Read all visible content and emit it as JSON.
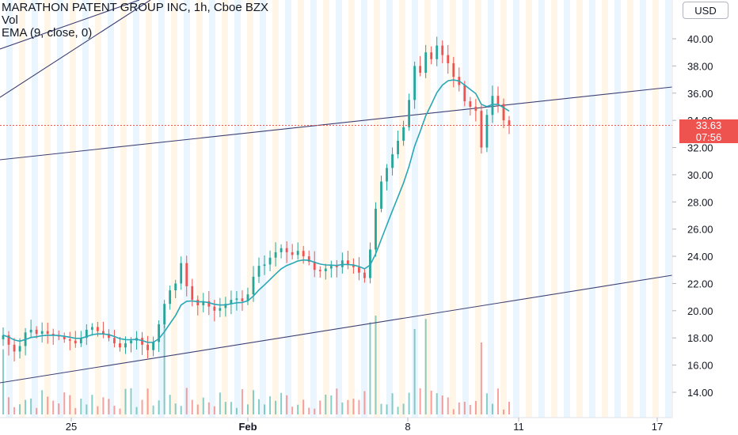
{
  "legend": {
    "symbol_line": "MARATHON PATENT GROUP INC, 1h, Cboe BZX",
    "vol_label": "Vol",
    "ema_label": "EMA (9, close, 0)"
  },
  "currency_button": "USD",
  "price_tag": {
    "price": "33.63",
    "countdown": "07:56"
  },
  "colors": {
    "up": "#26a69a",
    "down": "#ef5350",
    "ema": "#2aa7b5",
    "trendline": "#3c3f73",
    "session_blue": "#e3f2fd",
    "session_orange": "#fff3e0",
    "price_line": "#ef5350"
  },
  "chart_data": {
    "type": "candlestick",
    "symbol": "MARATHON PATENT GROUP INC",
    "interval": "1h",
    "exchange": "Cboe BZX",
    "currency": "USD",
    "y_axis": {
      "ticks": [
        "14.00",
        "16.00",
        "18.00",
        "20.00",
        "22.00",
        "24.00",
        "26.00",
        "28.00",
        "30.00",
        "32.00",
        "34.00",
        "36.00",
        "38.00",
        "40.00"
      ],
      "range": [
        12.5,
        41.5
      ]
    },
    "x_axis": {
      "ticks": [
        {
          "label": "25",
          "bold": false
        },
        {
          "label": "Feb",
          "bold": true
        },
        {
          "label": "8",
          "bold": false
        },
        {
          "label": "11",
          "bold": false
        },
        {
          "label": "17",
          "bold": false
        }
      ]
    },
    "last_price": 33.63,
    "price_series": [
      18.2,
      17.5,
      17.0,
      17.4,
      18.4,
      18.6,
      18.3,
      18.5,
      18.3,
      18.2,
      18.1,
      17.9,
      17.8,
      17.6,
      18.0,
      18.6,
      18.8,
      18.5,
      18.3,
      18.0,
      17.6,
      17.3,
      17.6,
      17.8,
      18.0,
      17.5,
      17.1,
      17.7,
      19.0,
      20.5,
      21.5,
      22.0,
      23.5,
      21.8,
      20.8,
      20.4,
      20.7,
      20.3,
      20.0,
      20.2,
      20.5,
      20.8,
      20.9,
      20.7,
      21.2,
      22.5,
      23.3,
      23.4,
      23.9,
      24.3,
      24.6,
      24.3,
      24.1,
      24.4,
      24.0,
      23.6,
      23.0,
      22.9,
      23.1,
      23.3,
      23.2,
      23.7,
      23.4,
      23.2,
      22.8,
      22.4,
      24.5,
      27.5,
      29.5,
      30.5,
      31.5,
      32.5,
      33.5,
      35.5,
      38.0,
      37.5,
      39.0,
      38.5,
      39.5,
      38.8,
      38.2,
      37.2,
      36.6,
      35.4,
      35.0,
      34.7,
      32.0,
      34.4,
      35.8,
      35.2,
      34.0,
      33.63
    ],
    "ema_period": 9
  }
}
